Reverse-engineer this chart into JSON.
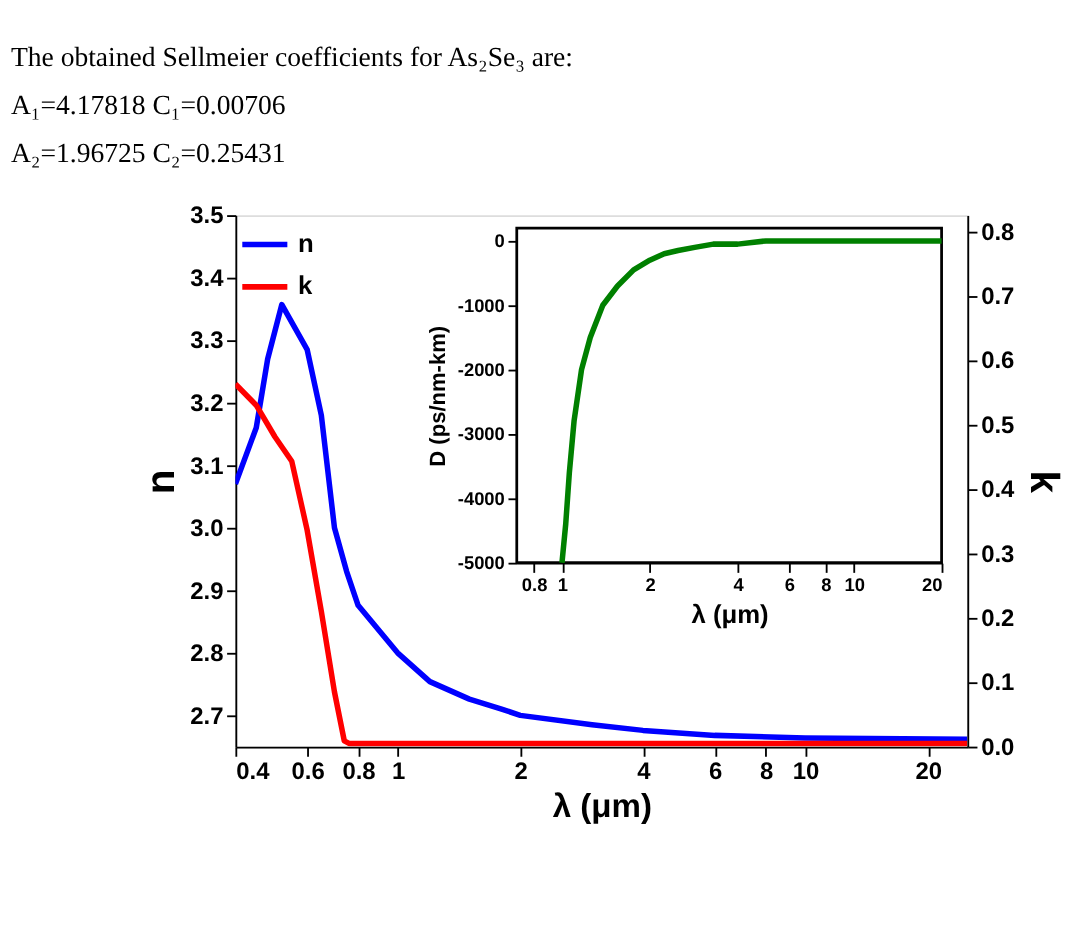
{
  "chart_data": [
    {
      "type": "line",
      "annotations": [
        "The obtained Sellmeier coefficients for As₂Se₃ are:",
        "A₁=4.17818    C₁=0.00706",
        "A₂=1.96725    C₂=0.25431"
      ],
      "xlabel": "λ (μm)",
      "ylabel": "n",
      "y2label": "k",
      "log": "x",
      "legend": "top left",
      "grid": false,
      "xlim": [
        0.4,
        25
      ],
      "xticks": [
        0.4,
        0.6,
        0.8,
        1,
        2,
        4,
        6,
        8,
        10,
        20
      ],
      "ylim": [
        2.65,
        3.5
      ],
      "yticks": [
        2.7,
        2.8,
        2.9,
        {
          "value": 3,
          "label": "3.0"
        },
        3.1,
        3.2,
        3.3,
        3.4,
        3.5
      ],
      "y2lim": [
        0,
        0.825
      ],
      "y2ticks": [
        {
          "value": 0,
          "label": "0.0"
        },
        0.1,
        0.2,
        0.3,
        0.4,
        0.5,
        0.6,
        0.7,
        0.8
      ],
      "series": [
        {
          "name": "n",
          "color": "#0000ff",
          "x": [
            0.4,
            0.45,
            0.48,
            0.52,
            0.6,
            0.65,
            0.7,
            0.75,
            0.8,
            1,
            1.2,
            1.5,
            1.8,
            2,
            3,
            4,
            6,
            10,
            25
          ],
          "values": [
            3.07,
            3.16,
            3.27,
            3.357,
            3.285,
            3.18,
            3.0,
            2.93,
            2.876,
            2.8,
            2.754,
            2.726,
            2.71,
            2.7,
            2.685,
            2.676,
            2.668,
            2.664,
            2.662
          ]
        },
        {
          "name": "k",
          "color": "#ff0000",
          "axis": "y2",
          "x": [
            0.4,
            0.45,
            0.5,
            0.55,
            0.6,
            0.65,
            0.7,
            0.74,
            0.76,
            1,
            2,
            5,
            10,
            25
          ],
          "values": [
            0.563,
            0.53,
            0.481,
            0.443,
            0.336,
            0.21,
            0.085,
            0.009,
            0.005,
            0.005,
            0.005,
            0.005,
            0.005,
            0.005
          ]
        }
      ]
    },
    {
      "type": "line",
      "xlabel": "λ (μm)",
      "ylabel": "D (ps/nm-km)",
      "log": "x",
      "grid": false,
      "xlim": [
        0.7,
        20
      ],
      "xticks": [
        0.8,
        1,
        2,
        4,
        6,
        8,
        10,
        20
      ],
      "ylim": [
        -5000,
        200
      ],
      "yticks": [
        {
          "value": -5000,
          "label": "-5000"
        },
        {
          "value": -4000,
          "label": "-4000"
        },
        {
          "value": -3000,
          "label": "-3000"
        },
        {
          "value": -2000,
          "label": "-2000"
        },
        {
          "value": -1000,
          "label": "-1000"
        },
        0
      ],
      "series": [
        {
          "color": "#008000",
          "x": [
            1,
            1.03,
            1.06,
            1.1,
            1.167,
            1.25,
            1.38,
            1.55,
            1.76,
            2,
            2.24,
            2.5,
            2.85,
            3.3,
            4,
            5,
            7.5,
            10,
            20
          ],
          "values": [
            -5000,
            -4400,
            -3600,
            -2800,
            -2000,
            -1500,
            -1000,
            -700,
            -450,
            -300,
            -200,
            -150,
            -100,
            -50,
            -50,
            0,
            0,
            0,
            0
          ]
        }
      ]
    }
  ]
}
